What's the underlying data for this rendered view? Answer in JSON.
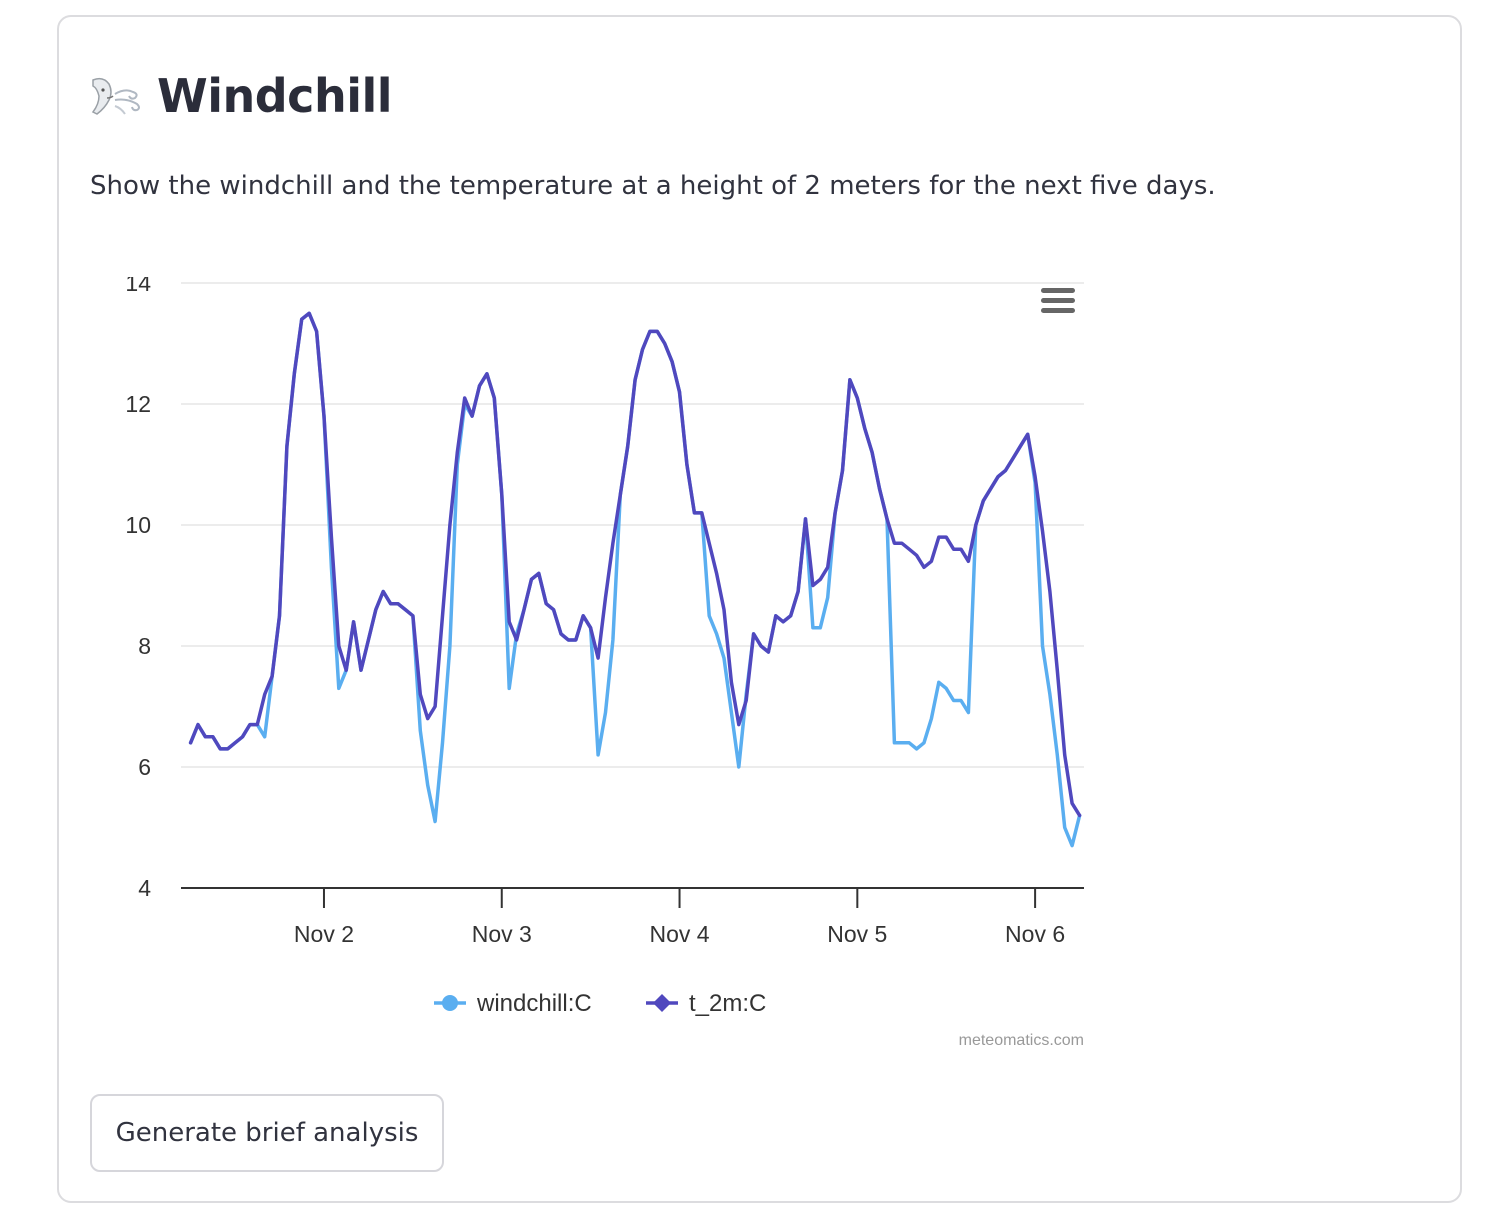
{
  "section": {
    "icon": "wind-face-icon",
    "title": "Windchill",
    "description": "Show the windchill and the temperature at a height of 2 meters for the next five days."
  },
  "actions": {
    "generate_label": "Generate brief analysis"
  },
  "colors": {
    "windchill": "#5aaef0",
    "t_2m": "#5048be",
    "grid": "#e6e6e6",
    "axis": "#333333"
  },
  "chart_data": {
    "type": "line",
    "title": "",
    "xlabel": "",
    "ylabel": "",
    "ylim": [
      4,
      14
    ],
    "yticks": [
      "4",
      "6",
      "8",
      "10",
      "12",
      "14"
    ],
    "xticks": [
      {
        "label": "Nov 2",
        "x": 24
      },
      {
        "label": "Nov 3",
        "x": 48
      },
      {
        "label": "Nov 4",
        "x": 72
      },
      {
        "label": "Nov 5",
        "x": 96
      },
      {
        "label": "Nov 6",
        "x": 120
      }
    ],
    "xlim": [
      4.7,
      126.6
    ],
    "x_unit": "hours since Nov 1 00:00",
    "legend_position": "bottom-center",
    "credit": "meteomatics.com",
    "menu_icon": "hamburger-menu-icon",
    "series": [
      {
        "name": "windchill:C",
        "x": [
          6,
          7,
          8,
          9,
          10,
          11,
          12,
          13,
          14,
          15,
          16,
          17,
          18,
          19,
          20,
          21,
          22,
          23,
          24,
          25,
          26,
          27,
          28,
          29,
          30,
          31,
          32,
          33,
          34,
          35,
          36,
          37,
          38,
          39,
          40,
          41,
          42,
          43,
          44,
          45,
          46,
          47,
          48,
          49,
          50,
          51,
          52,
          53,
          54,
          55,
          56,
          57,
          58,
          59,
          60,
          61,
          62,
          63,
          64,
          65,
          66,
          67,
          68,
          69,
          70,
          71,
          72,
          73,
          74,
          75,
          76,
          77,
          78,
          79,
          80,
          81,
          82,
          83,
          84,
          85,
          86,
          87,
          88,
          89,
          90,
          91,
          92,
          93,
          94,
          95,
          96,
          97,
          98,
          99,
          100,
          101,
          102,
          103,
          104,
          105,
          106,
          107,
          108,
          109,
          110,
          111,
          112,
          113,
          114,
          115,
          116,
          117,
          118,
          119,
          120,
          121,
          122,
          123,
          124,
          125,
          126
        ],
        "values": [
          6.4,
          6.7,
          6.5,
          6.5,
          6.3,
          6.3,
          6.4,
          6.5,
          6.7,
          6.7,
          6.5,
          7.5,
          8.5,
          11.3,
          12.5,
          13.4,
          13.5,
          13.2,
          11.8,
          9.3,
          7.3,
          7.6,
          8.4,
          7.6,
          8.1,
          8.6,
          8.9,
          8.7,
          8.7,
          8.6,
          8.5,
          6.6,
          5.7,
          5.1,
          6.4,
          8.0,
          11.0,
          12.0,
          11.8,
          12.3,
          12.5,
          12.1,
          10.5,
          7.3,
          8.2,
          8.6,
          9.1,
          9.2,
          8.7,
          8.6,
          8.2,
          8.1,
          8.1,
          8.5,
          8.3,
          6.2,
          6.9,
          8.1,
          10.5,
          11.3,
          12.4,
          12.9,
          13.2,
          13.2,
          13.0,
          12.7,
          12.2,
          11.0,
          10.2,
          10.2,
          8.5,
          8.2,
          7.8,
          6.9,
          6.0,
          7.2,
          8.2,
          8.0,
          7.9,
          8.5,
          8.4,
          8.5,
          8.9,
          10.1,
          8.3,
          8.3,
          8.8,
          10.2,
          10.9,
          12.4,
          12.1,
          11.6,
          11.2,
          10.6,
          10.1,
          6.4,
          6.4,
          6.4,
          6.3,
          6.4,
          6.8,
          7.4,
          7.3,
          7.1,
          7.1,
          6.9,
          10.0,
          10.4,
          10.6,
          10.8,
          10.9,
          11.1,
          11.3,
          11.5,
          10.7,
          8.0,
          7.2,
          6.2,
          5.0,
          4.7,
          5.2
        ]
      },
      {
        "name": "t_2m:C",
        "x": [
          6,
          7,
          8,
          9,
          10,
          11,
          12,
          13,
          14,
          15,
          16,
          17,
          18,
          19,
          20,
          21,
          22,
          23,
          24,
          25,
          26,
          27,
          28,
          29,
          30,
          31,
          32,
          33,
          34,
          35,
          36,
          37,
          38,
          39,
          40,
          41,
          42,
          43,
          44,
          45,
          46,
          47,
          48,
          49,
          50,
          51,
          52,
          53,
          54,
          55,
          56,
          57,
          58,
          59,
          60,
          61,
          62,
          63,
          64,
          65,
          66,
          67,
          68,
          69,
          70,
          71,
          72,
          73,
          74,
          75,
          76,
          77,
          78,
          79,
          80,
          81,
          82,
          83,
          84,
          85,
          86,
          87,
          88,
          89,
          90,
          91,
          92,
          93,
          94,
          95,
          96,
          97,
          98,
          99,
          100,
          101,
          102,
          103,
          104,
          105,
          106,
          107,
          108,
          109,
          110,
          111,
          112,
          113,
          114,
          115,
          116,
          117,
          118,
          119,
          120,
          121,
          122,
          123,
          124,
          125,
          126
        ],
        "values": [
          6.4,
          6.7,
          6.5,
          6.5,
          6.3,
          6.3,
          6.4,
          6.5,
          6.7,
          6.7,
          7.2,
          7.5,
          8.5,
          11.3,
          12.5,
          13.4,
          13.5,
          13.2,
          11.8,
          9.8,
          8.0,
          7.6,
          8.4,
          7.6,
          8.1,
          8.6,
          8.9,
          8.7,
          8.7,
          8.6,
          8.5,
          7.2,
          6.8,
          7.0,
          8.5,
          10.0,
          11.2,
          12.1,
          11.8,
          12.3,
          12.5,
          12.1,
          10.5,
          8.4,
          8.1,
          8.6,
          9.1,
          9.2,
          8.7,
          8.6,
          8.2,
          8.1,
          8.1,
          8.5,
          8.3,
          7.8,
          8.8,
          9.7,
          10.5,
          11.3,
          12.4,
          12.9,
          13.2,
          13.2,
          13.0,
          12.7,
          12.2,
          11.0,
          10.2,
          10.2,
          9.7,
          9.2,
          8.6,
          7.4,
          6.7,
          7.1,
          8.2,
          8.0,
          7.9,
          8.5,
          8.4,
          8.5,
          8.9,
          10.1,
          9.0,
          9.1,
          9.3,
          10.2,
          10.9,
          12.4,
          12.1,
          11.6,
          11.2,
          10.6,
          10.1,
          9.7,
          9.7,
          9.6,
          9.5,
          9.3,
          9.4,
          9.8,
          9.8,
          9.6,
          9.6,
          9.4,
          10.0,
          10.4,
          10.6,
          10.8,
          10.9,
          11.1,
          11.3,
          11.5,
          10.8,
          9.9,
          8.9,
          7.6,
          6.2,
          5.4,
          5.2
        ]
      }
    ]
  }
}
